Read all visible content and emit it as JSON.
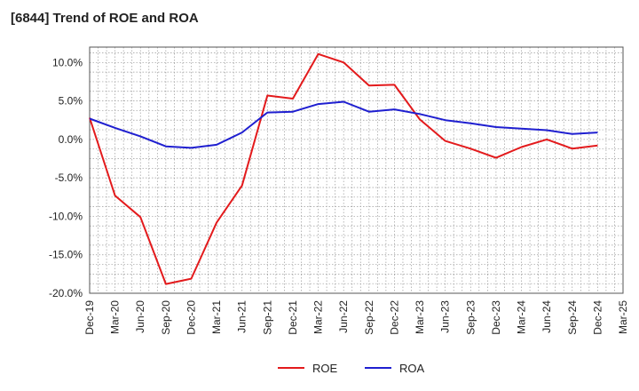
{
  "chart_data": {
    "type": "line",
    "title": "[6844]  Trend of ROE and ROA",
    "xlabel": "",
    "ylabel": "",
    "ylim": [
      -20,
      12
    ],
    "y_ticks": [
      10,
      5,
      0,
      -5,
      -10,
      -15,
      -20
    ],
    "y_tick_labels": [
      "10.0%",
      "5.0%",
      "0.0%",
      "-5.0%",
      "-10.0%",
      "-15.0%",
      "-20.0%"
    ],
    "grid": true,
    "legend_position": "bottom-center",
    "x_tick_labels": [
      "Dec-19",
      "Mar-20",
      "Jun-20",
      "Sep-20",
      "Dec-20",
      "Mar-21",
      "Jun-21",
      "Sep-21",
      "Dec-21",
      "Mar-22",
      "Jun-22",
      "Sep-22",
      "Dec-22",
      "Mar-23",
      "Jun-23",
      "Sep-23",
      "Dec-23",
      "Mar-24",
      "Jun-24",
      "Sep-24",
      "Dec-24",
      "Mar-25"
    ],
    "x": [
      "Dec-19",
      "Mar-20",
      "Jun-20",
      "Sep-20",
      "Dec-20",
      "Mar-21",
      "Jun-21",
      "Sep-21",
      "Dec-21",
      "Mar-22",
      "Jun-22",
      "Sep-22",
      "Dec-22",
      "Mar-23",
      "Jun-23",
      "Sep-23",
      "Dec-23",
      "Mar-24",
      "Jun-24",
      "Sep-24",
      "Dec-24"
    ],
    "series": [
      {
        "name": "ROE",
        "color": "#e31a1c",
        "values": [
          2.8,
          -7.3,
          -10.1,
          -18.8,
          -18.1,
          -10.8,
          -6.0,
          5.7,
          5.3,
          11.1,
          10.0,
          7.0,
          7.1,
          2.6,
          -0.2,
          -1.2,
          -2.4,
          -1.0,
          0.0,
          -1.2,
          -0.8
        ]
      },
      {
        "name": "ROA",
        "color": "#1f1fd0",
        "values": [
          2.7,
          1.5,
          0.4,
          -0.9,
          -1.1,
          -0.7,
          0.9,
          3.5,
          3.6,
          4.6,
          4.9,
          3.6,
          3.9,
          3.3,
          2.5,
          2.1,
          1.6,
          1.4,
          1.2,
          0.7,
          0.9
        ]
      }
    ]
  }
}
